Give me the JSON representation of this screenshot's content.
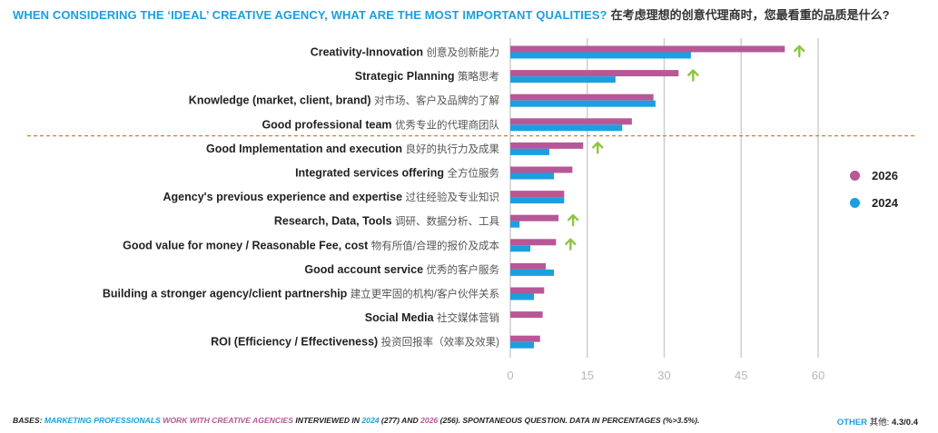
{
  "title": {
    "en": "WHEN CONSIDERING THE ‘IDEAL’ CREATIVE AGENCY, WHAT ARE THE MOST IMPORTANT QUALITIES?",
    "zh": "在考虑理想的创意代理商时，您最看重的品质是什么?"
  },
  "footer": {
    "bases": "BASES:",
    "marketing": "MARKETING PROFESSIONALS",
    "work": "WORK WITH CREATIVE AGENCIES",
    "interviewed": "INTERVIEWED IN",
    "y2024": "2024",
    "n2024": "(277) AND",
    "y2026": "2026",
    "rest": "(256). SPONTANEOUS QUESTION. DATA IN PERCENTAGES (%>3.5%)."
  },
  "other": {
    "label": "OTHER",
    "zh": "其他:",
    "value": "4.3/0.4"
  },
  "legend": [
    {
      "label": "2026",
      "color": "#b85797"
    },
    {
      "label": "2024",
      "color": "#1a9fe0"
    }
  ],
  "chart_data": {
    "type": "bar",
    "orientation": "horizontal",
    "categories": [
      {
        "en": "Creativity-Innovation",
        "zh": "创意及创新能力"
      },
      {
        "en": "Strategic Planning",
        "zh": "策略思考"
      },
      {
        "en": "Knowledge (market, client, brand)",
        "zh": "对市场、客户及品牌的了解"
      },
      {
        "en": "Good professional team",
        "zh": "优秀专业的代理商团队"
      },
      {
        "en": "Good Implementation and execution",
        "zh": "良好的执行力及成果"
      },
      {
        "en": "Integrated services offering",
        "zh": "全方位服务"
      },
      {
        "en": "Agency's previous experience and expertise",
        "zh": "过往经验及专业知识"
      },
      {
        "en": "Research, Data, Tools",
        "zh": "调研、数据分析、工具"
      },
      {
        "en": "Good value for money / Reasonable Fee, cost",
        "zh": "物有所值/合理的报价及成本"
      },
      {
        "en": "Good account service",
        "zh": "优秀的客户服务"
      },
      {
        "en": "Building a stronger agency/client partnership",
        "zh": "建立更牢固的机构/客户伙伴关系"
      },
      {
        "en": "Social Media",
        "zh": "社交媒体营销"
      },
      {
        "en": "ROI (Efficiency / Effectiveness)",
        "zh": "投资回报率（效率及效果)"
      }
    ],
    "series": [
      {
        "name": "2026",
        "color": "#b85797",
        "values": [
          53.5,
          32.8,
          27.9,
          23.7,
          14.2,
          12.1,
          10.5,
          9.4,
          8.9,
          6.9,
          6.6,
          6.3,
          5.8
        ]
      },
      {
        "name": "2024",
        "color": "#1a9fe0",
        "values": [
          35.2,
          20.5,
          28.3,
          21.8,
          7.6,
          8.5,
          10.5,
          1.8,
          3.9,
          8.5,
          4.6,
          null,
          4.6
        ]
      }
    ],
    "arrows_up": [
      true,
      true,
      false,
      false,
      true,
      false,
      false,
      true,
      true,
      false,
      false,
      false,
      false
    ],
    "arrow_color": "#8cc63f",
    "separator_after_index": 3,
    "separator_color": "#e07b21",
    "xlim": [
      0,
      60
    ],
    "xticks": [
      0,
      15,
      30,
      45,
      60
    ],
    "grid": true,
    "legend_position": "right"
  }
}
